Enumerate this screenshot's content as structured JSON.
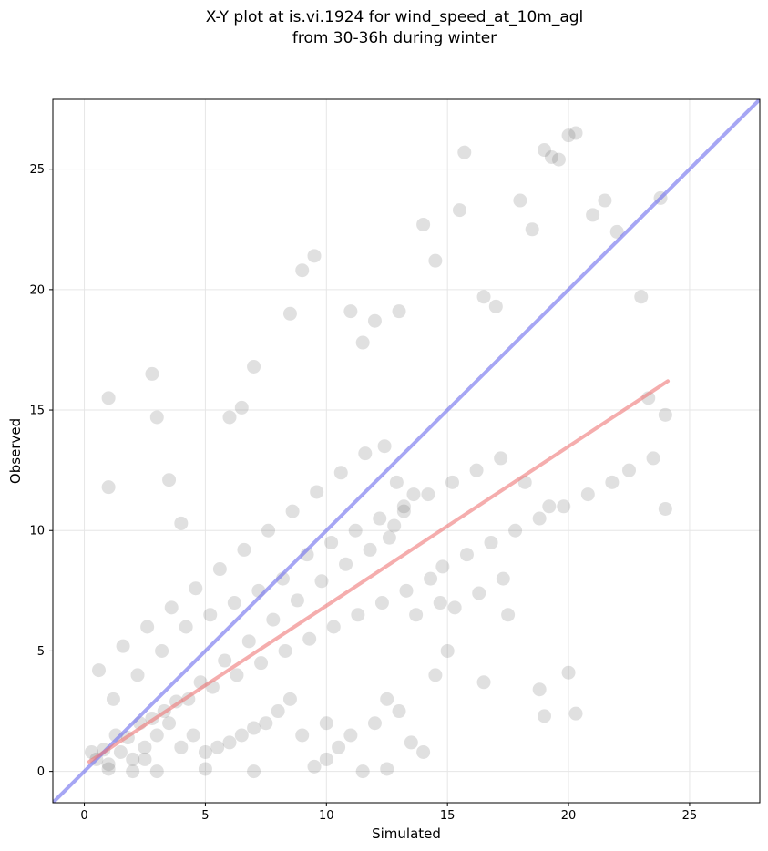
{
  "chart_data": {
    "type": "scatter",
    "title": "X-Y plot at is.vi.1924 for wind_speed_at_10m_agl",
    "subtitle": "from 30-36h during winter",
    "xlabel": "Simulated",
    "ylabel": "Observed",
    "xlim": [
      -1.3,
      27.9
    ],
    "ylim": [
      -1.3,
      27.9
    ],
    "xticks": [
      "0",
      "5",
      "10",
      "15",
      "20",
      "25"
    ],
    "yticks": [
      "0",
      "5",
      "10",
      "15",
      "20",
      "25"
    ],
    "grid": true,
    "legend": "none",
    "colors": {
      "points": "#555555",
      "identity_line": "#7777ee",
      "fit_line": "#ee7777",
      "grid": "#e6e6e6"
    },
    "identity_line": {
      "x": [
        -1.3,
        27.9
      ],
      "y": [
        -1.3,
        27.9
      ]
    },
    "fit_line": {
      "x": [
        0.2,
        24.1
      ],
      "y": [
        0.4,
        16.2
      ]
    },
    "series": [
      {
        "x": [
          1.0,
          1.0,
          2.8,
          3.0,
          3.5,
          4.0,
          6.0,
          6.5,
          7.0,
          8.5,
          9.0,
          9.5,
          11.0,
          11.5,
          12.0,
          13.0,
          14.0,
          14.5,
          15.5,
          15.7,
          16.5,
          17.0,
          18.0,
          18.5,
          19.0,
          19.3,
          19.6,
          20.0,
          20.3,
          21.0,
          21.5,
          22.0,
          23.0,
          23.3,
          24.0,
          24.0,
          23.8,
          20.3,
          20.0,
          19.0,
          18.8,
          14.0,
          13.5,
          12.5,
          11.5,
          10.0,
          9.5,
          7.0,
          5.0,
          2.0,
          2.5,
          3.0,
          1.0,
          16.5,
          17.5,
          15.0,
          14.5,
          13.0,
          12.5,
          12.0,
          11.0,
          10.5,
          10.0,
          9.0,
          8.5,
          8.0,
          7.5,
          7.0,
          6.5,
          6.0,
          5.5,
          5.0,
          4.5,
          4.0,
          3.5,
          3.0,
          2.5,
          2.0,
          1.5,
          1.0,
          0.5,
          1.2,
          2.2,
          3.2,
          4.2,
          5.2,
          6.2,
          7.2,
          8.2,
          9.2,
          10.2,
          11.2,
          12.2,
          13.2,
          14.2,
          15.2,
          16.2,
          17.2,
          18.2,
          19.2,
          12.8,
          13.2,
          12.6,
          11.8,
          10.8,
          9.8,
          8.8,
          7.8,
          6.8,
          5.8,
          4.8,
          3.8,
          2.8,
          1.8,
          0.8,
          14.8,
          15.8,
          16.8,
          17.8,
          18.8,
          19.8,
          20.8,
          21.8,
          22.5,
          23.5,
          9.3,
          10.3,
          11.3,
          12.3,
          13.3,
          14.3,
          8.3,
          7.3,
          6.3,
          5.3,
          4.3,
          3.3,
          2.3,
          1.3,
          0.3,
          12.9,
          12.4,
          13.6,
          11.6,
          10.6,
          9.6,
          8.6,
          7.6,
          6.6,
          5.6,
          4.6,
          3.6,
          2.6,
          1.6,
          0.6,
          15.3,
          16.3,
          17.3,
          14.7,
          13.7
        ],
        "y": [
          15.5,
          11.8,
          16.5,
          14.7,
          12.1,
          10.3,
          14.7,
          15.1,
          16.8,
          19.0,
          20.8,
          21.4,
          19.1,
          17.8,
          18.7,
          19.1,
          22.7,
          21.2,
          23.3,
          25.7,
          19.7,
          19.3,
          23.7,
          22.5,
          25.8,
          25.5,
          25.4,
          26.4,
          26.5,
          23.1,
          23.7,
          22.4,
          19.7,
          15.5,
          14.8,
          10.9,
          23.8,
          2.4,
          4.1,
          2.3,
          3.4,
          0.8,
          1.2,
          0.1,
          0.0,
          0.5,
          0.2,
          0.0,
          0.1,
          0.0,
          0.5,
          0.0,
          0.1,
          3.7,
          6.5,
          5.0,
          4.0,
          2.5,
          3.0,
          2.0,
          1.5,
          1.0,
          2.0,
          1.5,
          3.0,
          2.5,
          2.0,
          1.8,
          1.5,
          1.2,
          1.0,
          0.8,
          1.5,
          1.0,
          2.0,
          1.5,
          1.0,
          0.5,
          0.8,
          0.3,
          0.5,
          3.0,
          4.0,
          5.0,
          6.0,
          6.5,
          7.0,
          7.5,
          8.0,
          9.0,
          9.5,
          10.0,
          10.5,
          11.0,
          11.5,
          12.0,
          12.5,
          13.0,
          12.0,
          11.0,
          10.2,
          10.8,
          9.7,
          9.2,
          8.6,
          7.9,
          7.1,
          6.3,
          5.4,
          4.6,
          3.7,
          2.9,
          2.2,
          1.4,
          0.9,
          8.5,
          9.0,
          9.5,
          10.0,
          10.5,
          11.0,
          11.5,
          12.0,
          12.5,
          13.0,
          5.5,
          6.0,
          6.5,
          7.0,
          7.5,
          8.0,
          5.0,
          4.5,
          4.0,
          3.5,
          3.0,
          2.5,
          2.0,
          1.5,
          0.8,
          12.0,
          13.5,
          11.5,
          13.2,
          12.4,
          11.6,
          10.8,
          10.0,
          9.2,
          8.4,
          7.6,
          6.8,
          6.0,
          5.2,
          4.2,
          6.8,
          7.4,
          8.0,
          7.0,
          6.5
        ]
      }
    ]
  }
}
